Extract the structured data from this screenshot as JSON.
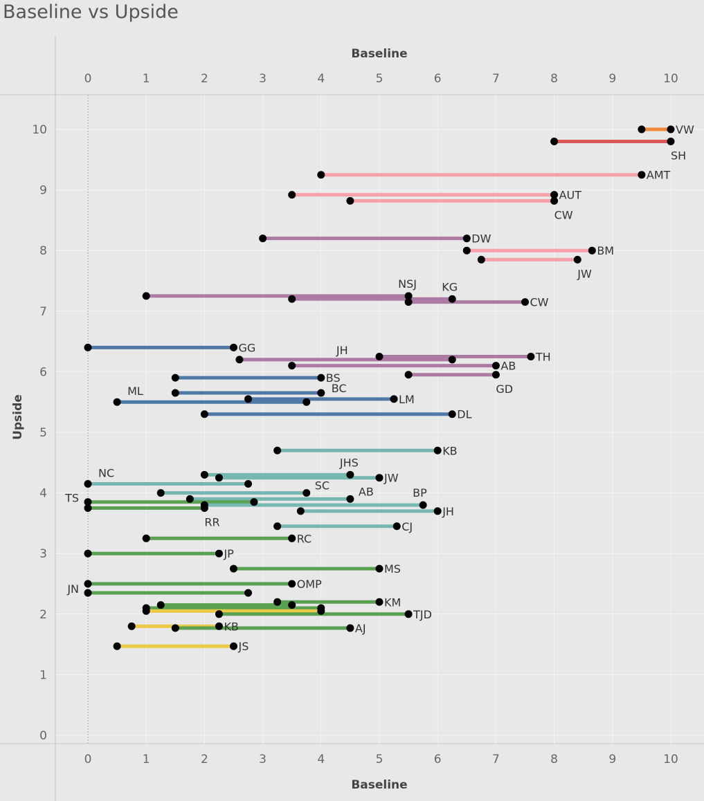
{
  "title": "Baseline vs Upside",
  "chart_data": {
    "type": "dumbbell",
    "title": "Baseline vs Upside",
    "xlabel": "Baseline",
    "ylabel": "Upside",
    "xlim": [
      -0.55,
      10.55
    ],
    "ylim": [
      -0.1,
      10.55
    ],
    "x_ticks": [
      0,
      1,
      2,
      3,
      4,
      5,
      6,
      7,
      8,
      9,
      10
    ],
    "y_ticks": [
      0,
      1,
      2,
      3,
      4,
      5,
      6,
      7,
      8,
      9,
      10
    ],
    "x_axis_positions": [
      "top",
      "bottom"
    ],
    "grid": true,
    "reference_line_x": 0,
    "colors": {
      "orange": "#f0883a",
      "red": "#d95757",
      "pink": "#f7a1aa",
      "purple": "#ad7aa3",
      "blue": "#4e78a6",
      "teal": "#76b7b2",
      "green": "#5aa151",
      "yellow": "#edc948"
    },
    "segments": [
      {
        "label": "VW",
        "color": "orange",
        "x1": 9.5,
        "x2": 10,
        "y1": 10,
        "y2": 10,
        "label_at": "right",
        "label_pos": "right"
      },
      {
        "label": "SH",
        "color": "red",
        "x1": 8,
        "x2": 10,
        "y1": 9.8,
        "y2": 9.8,
        "label_at": "right",
        "label_pos": "below"
      },
      {
        "label": "AMT",
        "color": "pink",
        "x1": 4,
        "x2": 9.5,
        "y1": 9.25,
        "y2": 9.25,
        "label_at": "right",
        "label_pos": "right"
      },
      {
        "label": "AUT",
        "color": "pink",
        "x1": 3.5,
        "x2": 8,
        "y1": 8.92,
        "y2": 8.92,
        "label_at": "right",
        "label_pos": "right"
      },
      {
        "label": "CW",
        "color": "pink",
        "x1": 4.5,
        "x2": 8,
        "y1": 8.82,
        "y2": 8.82,
        "label_at": "right",
        "label_pos": "below"
      },
      {
        "label": "DW",
        "color": "purple",
        "x1": 3,
        "x2": 6.5,
        "y1": 8.2,
        "y2": 8.2,
        "label_at": "right",
        "label_pos": "right"
      },
      {
        "label": "BM",
        "color": "pink",
        "x1": 6.5,
        "x2": 8.65,
        "y1": 8,
        "y2": 8,
        "label_at": "right",
        "label_pos": "right"
      },
      {
        "label": "JW",
        "color": "pink",
        "x1": 6.75,
        "x2": 8.4,
        "y1": 7.85,
        "y2": 7.85,
        "label_at": "right",
        "label_pos": "below"
      },
      {
        "label": "NSJ",
        "color": "purple",
        "x1": 1,
        "x2": 5.5,
        "y1": 7.25,
        "y2": 7.25,
        "label_at": "right",
        "label_pos": "above"
      },
      {
        "label": "KG",
        "color": "purple",
        "x1": 3.5,
        "x2": 6.25,
        "y1": 7.2,
        "y2": 7.2,
        "label_at": "right",
        "label_pos": "above"
      },
      {
        "label": "CW",
        "color": "purple",
        "x1": 5.5,
        "x2": 7.5,
        "y1": 7.15,
        "y2": 7.15,
        "label_at": "right",
        "label_pos": "right"
      },
      {
        "label": "GG",
        "color": "blue",
        "x1": 0,
        "x2": 2.5,
        "y1": 6.4,
        "y2": 6.4,
        "label_at": "right",
        "label_pos": "right"
      },
      {
        "label": "TH",
        "color": "purple",
        "x1": 5,
        "x2": 7.6,
        "y1": 6.25,
        "y2": 6.25,
        "label_at": "right",
        "label_pos": "right"
      },
      {
        "label": "JH",
        "color": "purple",
        "x1": 2.6,
        "x2": 6.25,
        "y1": 6.2,
        "y2": 6.2,
        "label_at": "left",
        "label_pos": "above-mid"
      },
      {
        "label": "AB",
        "color": "purple",
        "x1": 3.5,
        "x2": 7,
        "y1": 6.1,
        "y2": 6.1,
        "label_at": "right",
        "label_pos": "right"
      },
      {
        "label": "GD",
        "color": "purple",
        "x1": 5.5,
        "x2": 7,
        "y1": 5.95,
        "y2": 5.95,
        "label_at": "right",
        "label_pos": "below"
      },
      {
        "label": "BS",
        "color": "blue",
        "x1": 1.5,
        "x2": 4,
        "y1": 5.9,
        "y2": 5.9,
        "label_at": "right",
        "label_pos": "right"
      },
      {
        "label": "BC",
        "color": "blue",
        "x1": 1.5,
        "x2": 4,
        "y1": 5.65,
        "y2": 5.65,
        "label_at": "right",
        "label_pos": "right-up"
      },
      {
        "label": "LM",
        "color": "blue",
        "x1": 2.75,
        "x2": 5.25,
        "y1": 5.55,
        "y2": 5.55,
        "label_at": "right",
        "label_pos": "right"
      },
      {
        "label": "ML",
        "color": "blue",
        "x1": 0.5,
        "x2": 3.75,
        "y1": 5.5,
        "y2": 5.5,
        "label_at": "left",
        "label_pos": "above-left"
      },
      {
        "label": "DL",
        "color": "blue",
        "x1": 2,
        "x2": 6.25,
        "y1": 5.3,
        "y2": 5.3,
        "label_at": "right",
        "label_pos": "right"
      },
      {
        "label": "KB",
        "color": "teal",
        "x1": 3.25,
        "x2": 6,
        "y1": 4.7,
        "y2": 4.7,
        "label_at": "right",
        "label_pos": "right"
      },
      {
        "label": "JHS",
        "color": "teal",
        "x1": 2,
        "x2": 4.5,
        "y1": 4.3,
        "y2": 4.3,
        "label_at": "right",
        "label_pos": "above"
      },
      {
        "label": "JW",
        "color": "teal",
        "x1": 2.25,
        "x2": 5,
        "y1": 4.25,
        "y2": 4.25,
        "label_at": "right",
        "label_pos": "right"
      },
      {
        "label": "NC",
        "color": "teal",
        "x1": 0,
        "x2": 2.75,
        "y1": 4.15,
        "y2": 4.15,
        "label_at": "left",
        "label_pos": "above-left"
      },
      {
        "label": "SC",
        "color": "teal",
        "x1": 1.25,
        "x2": 3.75,
        "y1": 4,
        "y2": 4,
        "label_at": "right",
        "label_pos": "above-right"
      },
      {
        "label": "AB",
        "color": "teal",
        "x1": 1.75,
        "x2": 4.5,
        "y1": 3.9,
        "y2": 3.9,
        "label_at": "right",
        "label_pos": "above-right"
      },
      {
        "label": "TS",
        "color": "green",
        "x1": 0,
        "x2": 2.85,
        "y1": 3.85,
        "y2": 3.85,
        "label_at": "left",
        "label_pos": "left"
      },
      {
        "label": "BP",
        "color": "teal",
        "x1": 2,
        "x2": 5.75,
        "y1": 3.8,
        "y2": 3.8,
        "label_at": "right",
        "label_pos": "above"
      },
      {
        "label": "RR",
        "color": "green",
        "x1": 0,
        "x2": 2,
        "y1": 3.75,
        "y2": 3.75,
        "label_at": "right",
        "label_pos": "below"
      },
      {
        "label": "JH",
        "color": "teal",
        "x1": 3.65,
        "x2": 6,
        "y1": 3.7,
        "y2": 3.7,
        "label_at": "right",
        "label_pos": "right"
      },
      {
        "label": "CJ",
        "color": "teal",
        "x1": 3.25,
        "x2": 5.3,
        "y1": 3.45,
        "y2": 3.45,
        "label_at": "right",
        "label_pos": "right"
      },
      {
        "label": "RC",
        "color": "green",
        "x1": 1,
        "x2": 3.5,
        "y1": 3.25,
        "y2": 3.25,
        "label_at": "right",
        "label_pos": "right"
      },
      {
        "label": "JP",
        "color": "green",
        "x1": 0,
        "x2": 2.25,
        "y1": 3,
        "y2": 3,
        "label_at": "right",
        "label_pos": "right"
      },
      {
        "label": "MS",
        "color": "green",
        "x1": 2.5,
        "x2": 5,
        "y1": 2.75,
        "y2": 2.75,
        "label_at": "right",
        "label_pos": "right"
      },
      {
        "label": "OMP",
        "color": "green",
        "x1": 0,
        "x2": 3.5,
        "y1": 2.5,
        "y2": 2.5,
        "label_at": "right",
        "label_pos": "right"
      },
      {
        "label": "JN",
        "color": "green",
        "x1": 0,
        "x2": 2.75,
        "y1": 2.35,
        "y2": 2.35,
        "label_at": "left",
        "label_pos": "left"
      },
      {
        "label": "KM",
        "color": "green",
        "x1": 3.25,
        "x2": 5,
        "y1": 2.2,
        "y2": 2.2,
        "label_at": "right",
        "label_pos": "right"
      },
      {
        "label": "",
        "color": "green",
        "x1": 1.25,
        "x2": 3.5,
        "y1": 2.15,
        "y2": 2.15,
        "label_at": "none",
        "label_pos": "none"
      },
      {
        "label": "",
        "color": "green",
        "x1": 1,
        "x2": 4,
        "y1": 2.1,
        "y2": 2.1,
        "label_at": "none",
        "label_pos": "none"
      },
      {
        "label": "",
        "color": "yellow",
        "x1": 1,
        "x2": 4,
        "y1": 2.05,
        "y2": 2.05,
        "label_at": "none",
        "label_pos": "none"
      },
      {
        "label": "TJD",
        "color": "green",
        "x1": 2.25,
        "x2": 5.5,
        "y1": 2,
        "y2": 2,
        "label_at": "right",
        "label_pos": "right"
      },
      {
        "label": "KB",
        "color": "yellow",
        "x1": 0.75,
        "x2": 2.25,
        "y1": 1.8,
        "y2": 1.8,
        "label_at": "right",
        "label_pos": "right"
      },
      {
        "label": "AJ",
        "color": "green",
        "x1": 1.5,
        "x2": 4.5,
        "y1": 1.77,
        "y2": 1.77,
        "label_at": "right",
        "label_pos": "right"
      },
      {
        "label": "JS",
        "color": "yellow",
        "x1": 0.5,
        "x2": 2.5,
        "y1": 1.47,
        "y2": 1.47,
        "label_at": "right",
        "label_pos": "right"
      }
    ]
  }
}
